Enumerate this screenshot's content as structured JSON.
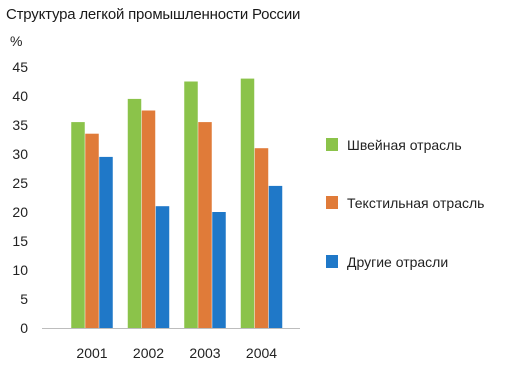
{
  "chart_data": {
    "type": "bar",
    "title": "Структура легкой промышленности России",
    "unit_label": "%",
    "xlabel": "",
    "ylabel": "",
    "categories": [
      "2001",
      "2002",
      "2003",
      "2004"
    ],
    "ylim": [
      0,
      45
    ],
    "yticks": [
      0,
      5,
      10,
      15,
      20,
      25,
      30,
      35,
      40,
      45
    ],
    "grid": false,
    "legend_position": "right",
    "series": [
      {
        "name": "Швейная отрасль",
        "color": "#8bc34a",
        "values": [
          35.5,
          39.5,
          42.5,
          43
        ]
      },
      {
        "name": "Текстильная отрасль",
        "color": "#e07b39",
        "values": [
          33.5,
          37.5,
          35.5,
          31
        ]
      },
      {
        "name": "Другие отрасли",
        "color": "#1f78c8",
        "values": [
          29.5,
          21,
          20,
          24.5
        ]
      }
    ]
  }
}
